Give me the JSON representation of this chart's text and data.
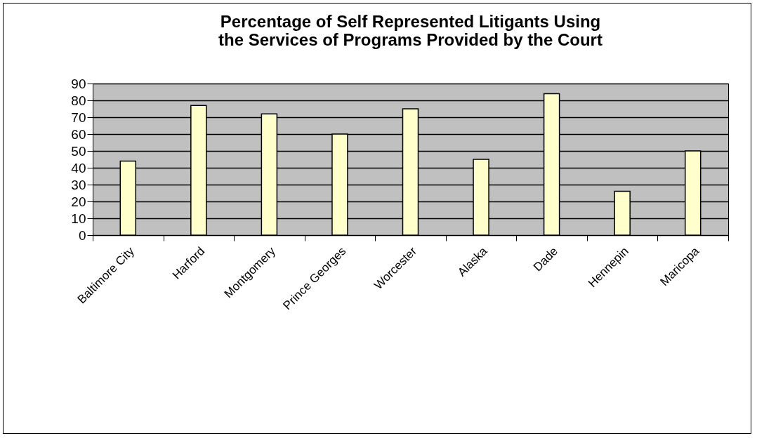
{
  "chart_data": {
    "type": "bar",
    "title": [
      "Percentage of Self Represented Litigants Using",
      "the Services of Programs Provided by the Court"
    ],
    "categories": [
      "Baltimore City",
      "Harford",
      "Montgomery",
      "Prince Georges",
      "Worcester",
      "Alaska",
      "Dade",
      "Hennepin",
      "Maricopa"
    ],
    "values": [
      44,
      77,
      72,
      60,
      75,
      45,
      84,
      26,
      50
    ],
    "color": "#ffffcc",
    "ylim": [
      0,
      90
    ],
    "yticks": [
      0,
      10,
      20,
      30,
      40,
      50,
      60,
      70,
      80,
      90
    ],
    "grid": "y"
  }
}
